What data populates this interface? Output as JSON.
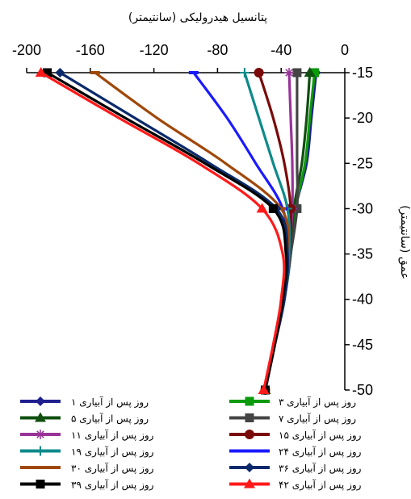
{
  "chart_data": {
    "type": "line",
    "xlabel": "پتانسیل هیدرولیکی (سانتیمتر)",
    "ylabel": "عمق (سانتیمتر)",
    "xlim": [
      -200,
      0
    ],
    "ylim": [
      -50,
      -15
    ],
    "x_ticks": [
      "-200",
      "-160",
      "-120",
      "-80",
      "-40",
      "0"
    ],
    "y_ticks": [
      "-15",
      "-20",
      "-25",
      "-30",
      "-35",
      "-40",
      "-45",
      "-50"
    ],
    "grid": false,
    "legend_position": "bottom",
    "series": [
      {
        "name": "۱ روز پس از آبیاری",
        "color": "#1f1f8f",
        "marker": "diamond",
        "points": [
          [
            -18,
            -15
          ],
          [
            -21,
            -20
          ],
          [
            -24,
            -25
          ],
          [
            -31,
            -30
          ],
          [
            -34,
            -35
          ],
          [
            -38,
            -40
          ],
          [
            -44,
            -45
          ],
          [
            -50,
            -50
          ]
        ]
      },
      {
        "name": "۳ روز پس از آبیاری",
        "color": "#0a9a0a",
        "marker": "square",
        "points": [
          [
            -19,
            -15
          ],
          [
            -22,
            -20
          ],
          [
            -25,
            -25
          ],
          [
            -31,
            -30
          ],
          [
            -34,
            -35
          ],
          [
            -38,
            -40
          ],
          [
            -44,
            -45
          ],
          [
            -50,
            -50
          ]
        ]
      },
      {
        "name": "۵ روز پس از آبیاری",
        "color": "#0f4f0f",
        "marker": "triangle",
        "points": [
          [
            -22,
            -15
          ],
          [
            -24,
            -20
          ],
          [
            -27,
            -25
          ],
          [
            -32,
            -30
          ],
          [
            -34,
            -35
          ],
          [
            -38,
            -40
          ],
          [
            -44,
            -45
          ],
          [
            -50,
            -50
          ]
        ]
      },
      {
        "name": "۷ روز پس از آبیاری",
        "color": "#444444",
        "marker": "square",
        "points": [
          [
            -30,
            -15
          ],
          [
            -30,
            -20
          ],
          [
            -30,
            -25
          ],
          [
            -30,
            -30
          ],
          [
            -34,
            -35
          ],
          [
            -38,
            -40
          ],
          [
            -44,
            -45
          ],
          [
            -50,
            -50
          ]
        ]
      },
      {
        "name": "۱۱ روز پس از آبیاری",
        "color": "#993399",
        "marker": "star",
        "points": [
          [
            -35,
            -15
          ],
          [
            -34,
            -20
          ],
          [
            -33,
            -25
          ],
          [
            -33,
            -30
          ],
          [
            -35,
            -35
          ],
          [
            -38,
            -40
          ],
          [
            -44,
            -45
          ],
          [
            -50,
            -50
          ]
        ]
      },
      {
        "name": "۱۵ روز پس از آبیاری",
        "color": "#7a0a0a",
        "marker": "circle",
        "points": [
          [
            -54,
            -15
          ],
          [
            -45,
            -20
          ],
          [
            -38,
            -25
          ],
          [
            -34,
            -30
          ],
          [
            -35,
            -35
          ],
          [
            -38,
            -40
          ],
          [
            -44,
            -45
          ],
          [
            -50,
            -50
          ]
        ]
      },
      {
        "name": "۱۹ روز پس از آبیاری",
        "color": "#0e8a8a",
        "marker": "plus",
        "points": [
          [
            -63,
            -15
          ],
          [
            -54,
            -20
          ],
          [
            -45,
            -25
          ],
          [
            -36,
            -30
          ],
          [
            -35,
            -35
          ],
          [
            -38,
            -40
          ],
          [
            -44,
            -45
          ],
          [
            -50,
            -50
          ]
        ]
      },
      {
        "name": "۲۴ روز پس از آبیاری",
        "color": "#1a1aff",
        "marker": "dash",
        "points": [
          [
            -95,
            -15
          ],
          [
            -74,
            -20
          ],
          [
            -56,
            -25
          ],
          [
            -39,
            -30
          ],
          [
            -36,
            -35
          ],
          [
            -38,
            -40
          ],
          [
            -44,
            -45
          ],
          [
            -50,
            -50
          ]
        ]
      },
      {
        "name": "۳۰ روز پس از آبیاری",
        "color": "#a0480a",
        "marker": "dash",
        "points": [
          [
            -157,
            -15
          ],
          [
            -118,
            -20
          ],
          [
            -75,
            -25
          ],
          [
            -40,
            -30
          ],
          [
            -36,
            -35
          ],
          [
            -38,
            -40
          ],
          [
            -44,
            -45
          ],
          [
            -50,
            -50
          ]
        ]
      },
      {
        "name": "۳۶ روز پس از آبیاری",
        "color": "#0b2a6b",
        "marker": "diamond",
        "points": [
          [
            -179,
            -15
          ],
          [
            -132,
            -20
          ],
          [
            -85,
            -25
          ],
          [
            -43,
            -30
          ],
          [
            -36,
            -35
          ],
          [
            -38,
            -40
          ],
          [
            -44,
            -45
          ],
          [
            -50,
            -50
          ]
        ]
      },
      {
        "name": "۳۹ روز پس از آبیاری",
        "color": "#000000",
        "marker": "square",
        "points": [
          [
            -187,
            -15
          ],
          [
            -138,
            -20
          ],
          [
            -88,
            -25
          ],
          [
            -45,
            -30
          ],
          [
            -37,
            -35
          ],
          [
            -39,
            -40
          ],
          [
            -44,
            -45
          ],
          [
            -50,
            -50
          ]
        ]
      },
      {
        "name": "۴۲ روز پس از آبیاری",
        "color": "#ff1a1a",
        "marker": "triangle",
        "points": [
          [
            -191,
            -15
          ],
          [
            -142,
            -20
          ],
          [
            -92,
            -25
          ],
          [
            -52,
            -30
          ],
          [
            -39,
            -35
          ],
          [
            -40,
            -40
          ],
          [
            -45,
            -45
          ],
          [
            -51,
            -50
          ]
        ]
      }
    ]
  }
}
